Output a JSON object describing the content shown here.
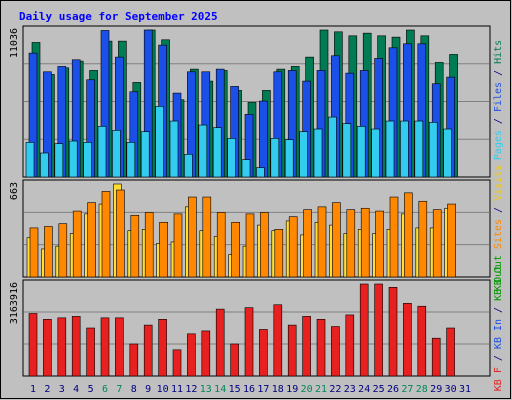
{
  "chart_data": [
    {
      "type": "bar",
      "title": "Daily usage for September 2025",
      "categories": [
        "1",
        "2",
        "3",
        "4",
        "5",
        "6",
        "7",
        "8",
        "9",
        "10",
        "11",
        "12",
        "13",
        "14",
        "15",
        "16",
        "17",
        "18",
        "19",
        "20",
        "21",
        "22",
        "23",
        "24",
        "25",
        "26",
        "27",
        "28",
        "29",
        "30",
        "31"
      ],
      "weekend_days": [
        "6",
        "7",
        "13",
        "14",
        "20",
        "21",
        "27",
        "28"
      ],
      "ylabel_max": "11036",
      "ylim": [
        0,
        11036
      ],
      "grid": true,
      "series": [
        {
          "name": "Hits",
          "color": "#007c55",
          "values": [
            10100,
            7700,
            8200,
            8700,
            8000,
            10200,
            10200,
            7100,
            11036,
            10300,
            5800,
            8100,
            7200,
            8000,
            6500,
            5600,
            6500,
            8100,
            8300,
            9000,
            11036,
            10900,
            10600,
            10800,
            10600,
            10500,
            11036,
            10600,
            8600,
            9200,
            null
          ]
        },
        {
          "name": "Files",
          "color": "#1a4fe8",
          "values": [
            9300,
            7900,
            8300,
            8800,
            7300,
            11000,
            9000,
            6400,
            11036,
            9900,
            6300,
            7900,
            7900,
            8100,
            6800,
            4700,
            5700,
            7900,
            8000,
            7200,
            8000,
            9100,
            7800,
            8000,
            8900,
            9700,
            10000,
            10000,
            7000,
            7500,
            null
          ]
        },
        {
          "name": "Pages",
          "color": "#33ccee",
          "values": [
            2600,
            1800,
            2500,
            2700,
            2600,
            3800,
            3500,
            2600,
            3400,
            5300,
            4200,
            1700,
            3900,
            3700,
            2900,
            1300,
            700,
            2900,
            2800,
            3400,
            3600,
            4500,
            4000,
            3800,
            3600,
            4200,
            4200,
            4200,
            4100,
            3600,
            null
          ]
        }
      ]
    },
    {
      "type": "bar",
      "ylabel_max": "663",
      "ylim": [
        0,
        663
      ],
      "grid": true,
      "series": [
        {
          "name": "Visits",
          "color": "#ffdd33",
          "values": [
            280,
            200,
            220,
            310,
            450,
            520,
            663,
            330,
            340,
            240,
            250,
            500,
            330,
            290,
            160,
            220,
            370,
            330,
            400,
            300,
            390,
            370,
            310,
            340,
            310,
            340,
            450,
            350,
            350,
            490,
            null
          ]
        },
        {
          "name": "Sites",
          "color": "#ff8800",
          "values": [
            350,
            360,
            380,
            470,
            530,
            610,
            620,
            440,
            460,
            390,
            450,
            570,
            570,
            460,
            390,
            450,
            460,
            340,
            430,
            480,
            500,
            530,
            480,
            490,
            470,
            570,
            600,
            540,
            480,
            520,
            null
          ]
        }
      ]
    },
    {
      "type": "bar",
      "ylabel_max": "3163916",
      "ylim": [
        0,
        3163916
      ],
      "grid": true,
      "series": [
        {
          "name": "KB F",
          "color": "#e82020",
          "values": [
            2150000,
            1950000,
            2000000,
            2050000,
            1650000,
            2000000,
            2000000,
            1100000,
            1750000,
            1950000,
            900000,
            1450000,
            1550000,
            2300000,
            1100000,
            2350000,
            1600000,
            2450000,
            1750000,
            2050000,
            1950000,
            1700000,
            2100000,
            3163916,
            3163916,
            3050000,
            2500000,
            2400000,
            1300000,
            1650000,
            null
          ]
        }
      ]
    }
  ],
  "right_labels": {
    "panel1": [
      {
        "text": "Pages",
        "color": "#33ccee"
      },
      {
        "text": " / ",
        "color": "#000080"
      },
      {
        "text": "Files",
        "color": "#1a4fe8"
      },
      {
        "text": " / ",
        "color": "#000080"
      },
      {
        "text": "Hits",
        "color": "#007c55"
      }
    ],
    "panel2": [
      {
        "text": "KB Out",
        "color": "#009900"
      },
      {
        "text": " ",
        "color": "#000080"
      },
      {
        "text": "Sites",
        "color": "#ff8800"
      },
      {
        "text": " / ",
        "color": "#000080"
      },
      {
        "text": "Visits",
        "color": "#e8c81a"
      }
    ],
    "panel3": [
      {
        "text": "KB F",
        "color": "#e82020"
      },
      {
        "text": " / ",
        "color": "#000080"
      },
      {
        "text": "KB In",
        "color": "#1a4fe8"
      },
      {
        "text": " / ",
        "color": "#000080"
      },
      {
        "text": "KB Out",
        "color": "#009900"
      }
    ]
  },
  "colors": {
    "frame": "#c0c0c0",
    "plot": "#c0c0c0",
    "title": "#0000ff",
    "weekday_label": "#000080",
    "weekend_label": "#00875a"
  }
}
